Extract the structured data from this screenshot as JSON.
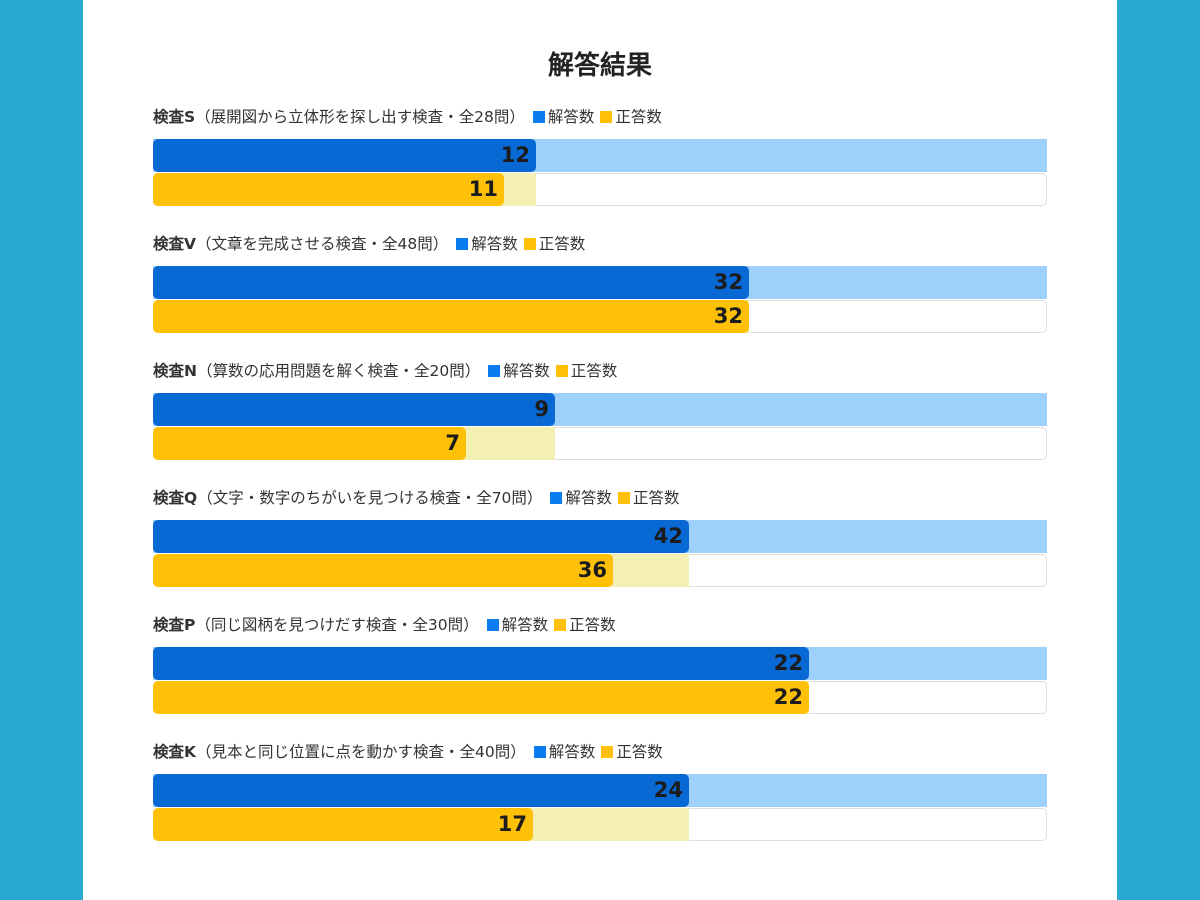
{
  "page": {
    "title": "解答結果"
  },
  "legend": {
    "answered_label": "解答数",
    "correct_label": "正答数"
  },
  "colors": {
    "background": "#29a8d1",
    "answered": "#0868d4",
    "answered_track": "#9dd0fb",
    "correct": "#ffc107",
    "correct_track": "#f4f0b4",
    "legend_answered": "#0a7cf0",
    "legend_correct": "#ffc107"
  },
  "tests": [
    {
      "id": "検査S",
      "description": "（展開図から立体形を探し出す検査・全28問）",
      "total": 28,
      "answered": 12,
      "correct": 11
    },
    {
      "id": "検査V",
      "description": "（文章を完成させる検査・全48問）",
      "total": 48,
      "answered": 32,
      "correct": 32
    },
    {
      "id": "検査N",
      "description": "（算数の応用問題を解く検査・全20問）",
      "total": 20,
      "answered": 9,
      "correct": 7
    },
    {
      "id": "検査Q",
      "description": "（文字・数字のちがいを見つける検査・全70問）",
      "total": 70,
      "answered": 42,
      "correct": 36
    },
    {
      "id": "検査P",
      "description": "（同じ図柄を見つけだす検査・全30問）",
      "total": 30,
      "answered": 22,
      "correct": 22
    },
    {
      "id": "検査K",
      "description": "（見本と同じ位置に点を動かす検査・全40問）",
      "total": 40,
      "answered": 24,
      "correct": 17
    }
  ]
}
